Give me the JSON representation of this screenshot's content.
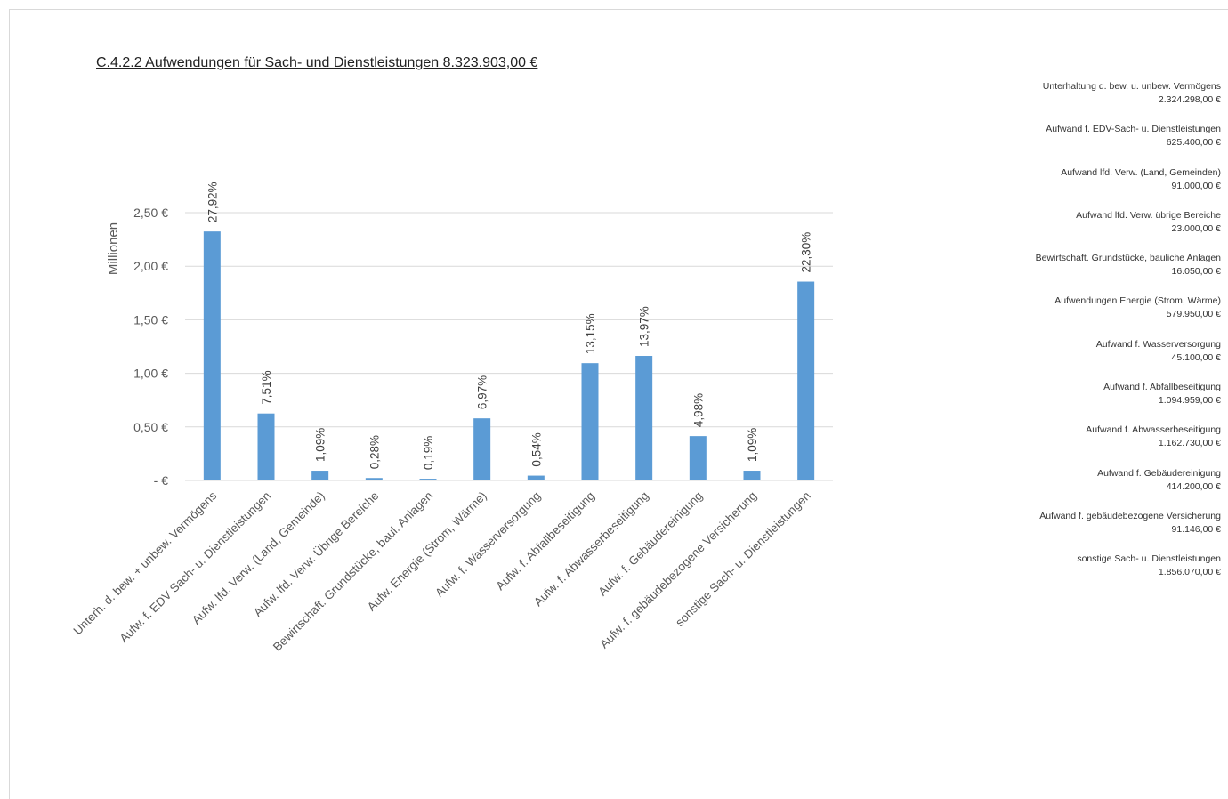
{
  "title": "C.4.2.2 Aufwendungen für Sach- und Dienstleistungen 8.323.903,00 €",
  "colors": {
    "bar": "#5b9bd5",
    "grid": "#d9d9d9",
    "text": "#595959"
  },
  "chart_data": {
    "type": "bar",
    "title": "C.4.2.2 Aufwendungen für Sach- und Dienstleistungen 8.323.903,00 €",
    "ylabel": "Millionen",
    "ylim": [
      0,
      2.5
    ],
    "yticks": [
      0,
      0.5,
      1.0,
      1.5,
      2.0,
      2.5
    ],
    "ytick_labels": [
      "- €",
      "0,50 €",
      "1,00 €",
      "1,50 €",
      "2,00 €",
      "2,50 €"
    ],
    "grid": true,
    "categories": [
      "Unterh. d. bew. + unbew. Vermögens",
      "Aufw. f. EDV Sach- u. Dienstleistungen",
      "Aufw. lfd. Verw. (Land, Gemeinde)",
      "Aufw. lfd. Verw. Übrige Bereiche",
      "Bewirtschaft. Grundstücke, baul. Anlagen",
      "Aufw. Energie (Strom, Wärme)",
      "Aufw. f. Wasserversorgung",
      "Aufw. f. Abfallbeseitigung",
      "Aufw. f. Abwasserbeseitigung",
      "Aufw. f. Gebäudereinigung",
      "Aufw. f. gebäudebezogene Versicherung",
      "sonstige Sach- u. Dienstleistungen"
    ],
    "values": [
      2.324298,
      0.6254,
      0.091,
      0.023,
      0.01605,
      0.57995,
      0.0451,
      1.094959,
      1.16273,
      0.4142,
      0.091146,
      1.85607
    ],
    "data_labels": [
      "27,92%",
      "7,51%",
      "1,09%",
      "0,28%",
      "0,19%",
      "6,97%",
      "0,54%",
      "13,15%",
      "13,97%",
      "4,98%",
      "1,09%",
      "22,30%"
    ]
  },
  "side_list": [
    {
      "label": "Unterhaltung d. bew. u. unbew. Vermögens",
      "value": "2.324.298,00 €"
    },
    {
      "label": "Aufwand f. EDV-Sach- u. Dienstleistungen",
      "value": "625.400,00 €"
    },
    {
      "label": "Aufwand lfd. Verw. (Land, Gemeinden)",
      "value": "91.000,00 €"
    },
    {
      "label": "Aufwand lfd. Verw. übrige Bereiche",
      "value": "23.000,00 €"
    },
    {
      "label": "Bewirtschaft. Grundstücke, bauliche Anlagen",
      "value": "16.050,00 €"
    },
    {
      "label": "Aufwendungen Energie (Strom, Wärme)",
      "value": "579.950,00 €"
    },
    {
      "label": "Aufwand f. Wasserversorgung",
      "value": "45.100,00 €"
    },
    {
      "label": "Aufwand f. Abfallbeseitigung",
      "value": "1.094.959,00 €"
    },
    {
      "label": "Aufwand f. Abwasserbeseitigung",
      "value": "1.162.730,00 €"
    },
    {
      "label": "Aufwand f. Gebäudereinigung",
      "value": "414.200,00 €"
    },
    {
      "label": "Aufwand f. gebäudebezogene Versicherung",
      "value": "91.146,00 €"
    },
    {
      "label": "sonstige Sach- u. Dienstleistungen",
      "value": "1.856.070,00 €"
    }
  ]
}
